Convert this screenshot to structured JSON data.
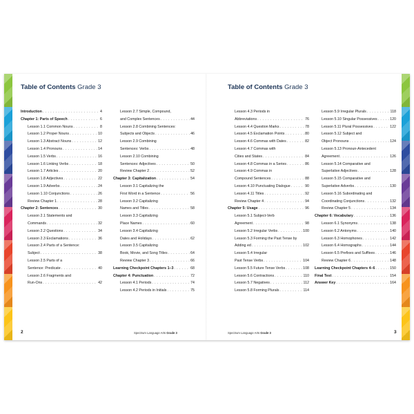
{
  "tab_colors": [
    "#8cc63f",
    "#1ba1d8",
    "#2e4da0",
    "#6a3c98",
    "#d9245c",
    "#e8452c",
    "#f7931e",
    "#fcc419"
  ],
  "left_page": {
    "title_bold": "Table of Contents",
    "title_rest": " Grade 3",
    "page_number": "2",
    "footer_text": "Spectrum Language Arts ",
    "footer_grade": "Grade 3",
    "col1": [
      {
        "t": "Introduction",
        "p": "4",
        "bold": true,
        "lvl": 0
      },
      {
        "t": "Chapter 1: Parts of Speech",
        "p": "6",
        "bold": true,
        "lvl": 0
      },
      {
        "t": "Lesson 1.1 Common Nouns",
        "p": "8",
        "lvl": 1
      },
      {
        "t": "Lesson 1.2 Proper Nouns",
        "p": "10",
        "lvl": 1
      },
      {
        "t": "Lesson 1.3 Abstract Nouns",
        "p": "12",
        "lvl": 1
      },
      {
        "t": "Lesson 1.4 Pronouns",
        "p": "14",
        "lvl": 1
      },
      {
        "t": "Lesson 1.5 Verbs",
        "p": "16",
        "lvl": 1
      },
      {
        "t": "Lesson 1.6 Linking Verbs",
        "p": "18",
        "lvl": 1
      },
      {
        "t": "Lesson 1.7 Articles",
        "p": "20",
        "lvl": 1
      },
      {
        "t": "Lesson 1.8 Adjectives",
        "p": "22",
        "lvl": 1
      },
      {
        "t": "Lesson 1.9 Adverbs",
        "p": "24",
        "lvl": 1
      },
      {
        "t": "Lesson 1.10 Conjunctions",
        "p": "26",
        "lvl": 1
      },
      {
        "t": "Review Chapter 1",
        "p": "28",
        "lvl": 1
      },
      {
        "t": "Chapter 2: Sentences",
        "p": "30",
        "bold": true,
        "lvl": 0
      },
      {
        "t": "Lesson 2.1 Statements and",
        "p": "",
        "lvl": 1
      },
      {
        "t": "Commands",
        "p": "32",
        "lvl": 1
      },
      {
        "t": "Lesson 2.2 Questions",
        "p": "34",
        "lvl": 1
      },
      {
        "t": "Lesson 2.3 Exclamations",
        "p": "36",
        "lvl": 1
      },
      {
        "t": "Lesson 2.4 Parts of a Sentence:",
        "p": "",
        "lvl": 1
      },
      {
        "t": "Subject",
        "p": "38",
        "lvl": 1
      },
      {
        "t": "Lesson 2.5 Parts of a",
        "p": "",
        "lvl": 1
      },
      {
        "t": "Sentence: Predicate",
        "p": "40",
        "lvl": 1
      },
      {
        "t": "Lesson 2.6 Fragments and",
        "p": "",
        "lvl": 1
      },
      {
        "t": "Run-Ons",
        "p": "42",
        "lvl": 1
      }
    ],
    "col2": [
      {
        "t": "Lesson 2.7 Simple, Compound,",
        "p": "",
        "lvl": 1
      },
      {
        "t": "and Complex Sentences",
        "p": "44",
        "lvl": 1
      },
      {
        "t": "Lesson 2.8 Combining Sentences:",
        "p": "",
        "lvl": 1
      },
      {
        "t": "Subjects and Objects",
        "p": "46",
        "lvl": 1
      },
      {
        "t": "Lesson 2.9 Combining",
        "p": "",
        "lvl": 1
      },
      {
        "t": "Sentences: Verbs",
        "p": "48",
        "lvl": 1
      },
      {
        "t": "Lesson 2.10 Combining",
        "p": "",
        "lvl": 1
      },
      {
        "t": "Sentences: Adjectives",
        "p": "50",
        "lvl": 1
      },
      {
        "t": "Review Chapter 2",
        "p": "52",
        "lvl": 1
      },
      {
        "t": "Chapter 3: Capitalization",
        "p": "54",
        "bold": true,
        "lvl": 0
      },
      {
        "t": "Lesson 3.1 Capitalizing the",
        "p": "",
        "lvl": 1
      },
      {
        "t": "First Word in a Sentence",
        "p": "56",
        "lvl": 1
      },
      {
        "t": "Lesson 3.2 Capitalizing",
        "p": "",
        "lvl": 1
      },
      {
        "t": "Names and Titles",
        "p": "58",
        "lvl": 1
      },
      {
        "t": "Lesson 3.3 Capitalizing",
        "p": "",
        "lvl": 1
      },
      {
        "t": "Place Names",
        "p": "60",
        "lvl": 1
      },
      {
        "t": "Lesson 3.4 Capitalizing",
        "p": "",
        "lvl": 1
      },
      {
        "t": "Dates and Holidays",
        "p": "62",
        "lvl": 1
      },
      {
        "t": "Lesson 3.5 Capitalizing",
        "p": "",
        "lvl": 1
      },
      {
        "t": "Book, Movie, and Song Titles",
        "p": "64",
        "lvl": 1
      },
      {
        "t": "Review Chapter 3",
        "p": "66",
        "lvl": 1
      },
      {
        "t": "Learning Checkpoint Chapters 1–3",
        "p": "68",
        "bold": true,
        "lvl": 0
      },
      {
        "t": "Chapter 4: Punctuation",
        "p": "72",
        "bold": true,
        "lvl": 0
      },
      {
        "t": "Lesson 4.1 Periods",
        "p": "74",
        "lvl": 1
      },
      {
        "t": "Lesson 4.2 Periods in Initials",
        "p": "75",
        "lvl": 1
      }
    ]
  },
  "right_page": {
    "title_bold": "Table of Contents",
    "title_rest": " Grade 3",
    "page_number": "3",
    "footer_text": "Spectrum Language Arts ",
    "footer_grade": "Grade 3",
    "col1": [
      {
        "t": "Lesson 4.3 Periods in",
        "p": "",
        "lvl": 1
      },
      {
        "t": "Abbreviations",
        "p": "76",
        "lvl": 1
      },
      {
        "t": "Lesson 4.4 Question Marks",
        "p": "78",
        "lvl": 1
      },
      {
        "t": "Lesson 4.5 Exclamation Points",
        "p": "80",
        "lvl": 1
      },
      {
        "t": "Lesson 4.6 Commas with Dates",
        "p": "82",
        "lvl": 1
      },
      {
        "t": "Lesson 4.7 Commas with",
        "p": "",
        "lvl": 1
      },
      {
        "t": "Cities and States",
        "p": "84",
        "lvl": 1
      },
      {
        "t": "Lesson 4.8 Commas in a Series",
        "p": "86",
        "lvl": 1
      },
      {
        "t": "Lesson 4.9 Commas in",
        "p": "",
        "lvl": 1
      },
      {
        "t": "Compound Sentences",
        "p": "88",
        "lvl": 1
      },
      {
        "t": "Lesson 4.10 Punctuating Dialogue",
        "p": "90",
        "lvl": 1
      },
      {
        "t": "Lesson 4.11 Titles",
        "p": "92",
        "lvl": 1
      },
      {
        "t": "Review Chapter 4",
        "p": "94",
        "lvl": 1
      },
      {
        "t": "Chapter 5: Usage",
        "p": "96",
        "bold": true,
        "lvl": 0
      },
      {
        "t": "Lesson 5.1 Subject-Verb",
        "p": "",
        "lvl": 1
      },
      {
        "t": "Agreement",
        "p": "98",
        "lvl": 1
      },
      {
        "t": "Lesson 5.2 Irregular Verbs",
        "p": "100",
        "lvl": 1
      },
      {
        "t": "Lesson 5.3 Forming the Past Tense by",
        "p": "",
        "lvl": 1
      },
      {
        "t": "Adding ed",
        "p": "102",
        "lvl": 1
      },
      {
        "t": "Lesson 5.4 Irregular",
        "p": "",
        "lvl": 1
      },
      {
        "t": "Past Tense Verbs",
        "p": "104",
        "lvl": 1
      },
      {
        "t": "Lesson 5.5 Future Tense Verbs",
        "p": "108",
        "lvl": 1
      },
      {
        "t": "Lesson 5.6 Contractions",
        "p": "110",
        "lvl": 1
      },
      {
        "t": "Lesson 5.7 Negatives",
        "p": "112",
        "lvl": 1
      },
      {
        "t": "Lesson 5.8 Forming Plurals",
        "p": "114",
        "lvl": 1
      }
    ],
    "col2": [
      {
        "t": "Lesson 5.9 Irregular Plurals",
        "p": "118",
        "lvl": 1
      },
      {
        "t": "Lesson 5.10 Singular Possessives",
        "p": "120",
        "lvl": 1
      },
      {
        "t": "Lesson 5.11 Plural Possessives",
        "p": "122",
        "lvl": 1
      },
      {
        "t": "Lesson 5.12 Subject and",
        "p": "",
        "lvl": 1
      },
      {
        "t": "Object Pronouns",
        "p": "124",
        "lvl": 1
      },
      {
        "t": "Lesson 5.13 Pronoun-Antecedent",
        "p": "",
        "lvl": 1
      },
      {
        "t": "Agreement",
        "p": "126",
        "lvl": 1
      },
      {
        "t": "Lesson 5.14 Comparative and",
        "p": "",
        "lvl": 1
      },
      {
        "t": "Superlative Adjectives",
        "p": "128",
        "lvl": 1
      },
      {
        "t": "Lesson 5.15 Comparative and",
        "p": "",
        "lvl": 1
      },
      {
        "t": "Superlative Adverbs",
        "p": "130",
        "lvl": 1
      },
      {
        "t": "Lesson 5.16 Subordinating and",
        "p": "",
        "lvl": 1
      },
      {
        "t": "Coordinating Conjunctions",
        "p": "132",
        "lvl": 1
      },
      {
        "t": "Review Chapter 5",
        "p": "134",
        "lvl": 1
      },
      {
        "t": "Chapter 6: Vocabulary",
        "p": "136",
        "bold": true,
        "lvl": 0
      },
      {
        "t": "Lesson 6.1 Synonyms",
        "p": "138",
        "lvl": 1
      },
      {
        "t": "Lesson 6.2 Antonyms",
        "p": "140",
        "lvl": 1
      },
      {
        "t": "Lesson 6.3 Homophones",
        "p": "142",
        "lvl": 1
      },
      {
        "t": "Lesson 6.4 Homographs",
        "p": "144",
        "lvl": 1
      },
      {
        "t": "Lesson 6.5 Prefixes and Suffixes",
        "p": "146",
        "lvl": 1
      },
      {
        "t": "Review Chapter 6",
        "p": "148",
        "lvl": 1
      },
      {
        "t": "Learning Checkpoint Chapters 4–6",
        "p": "150",
        "bold": true,
        "lvl": 0
      },
      {
        "t": "Final Test",
        "p": "154",
        "bold": true,
        "lvl": 0
      },
      {
        "t": "Answer Key",
        "p": "164",
        "bold": true,
        "lvl": 0
      }
    ]
  }
}
